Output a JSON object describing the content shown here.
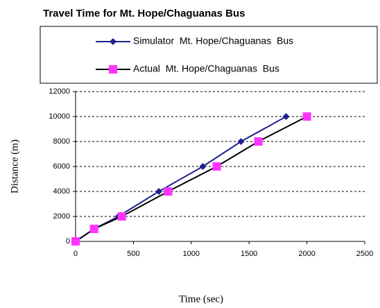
{
  "chart_data": {
    "type": "line",
    "title": "Travel Time for Mt. Hope/Chaguanas Bus",
    "x_label": "Time (sec)",
    "y_label": "Distance (m)",
    "series": [
      {
        "name": "Simulator  Mt. Hope/Chaguanas  Bus",
        "color": "#1f1f8f",
        "marker": "diamond",
        "x": [
          0,
          160,
          370,
          720,
          1100,
          1430,
          1820
        ],
        "values": [
          0,
          1000,
          2000,
          4000,
          6000,
          8000,
          10000
        ]
      },
      {
        "name": "Actual  Mt. Hope/Chaguanas  Bus",
        "color": "#000000",
        "marker": "square",
        "marker_color": "#ff33ff",
        "x": [
          0,
          160,
          400,
          800,
          1220,
          1580,
          2000
        ],
        "values": [
          0,
          1000,
          2000,
          4000,
          6000,
          8000,
          10000
        ]
      }
    ],
    "xlim": [
      0,
      2500
    ],
    "xticks": [
      0,
      500,
      1000,
      1500,
      2000,
      2500
    ],
    "ylim": [
      0,
      12000
    ],
    "yticks": [
      0,
      2000,
      4000,
      6000,
      8000,
      10000,
      12000
    ],
    "grid": true
  }
}
